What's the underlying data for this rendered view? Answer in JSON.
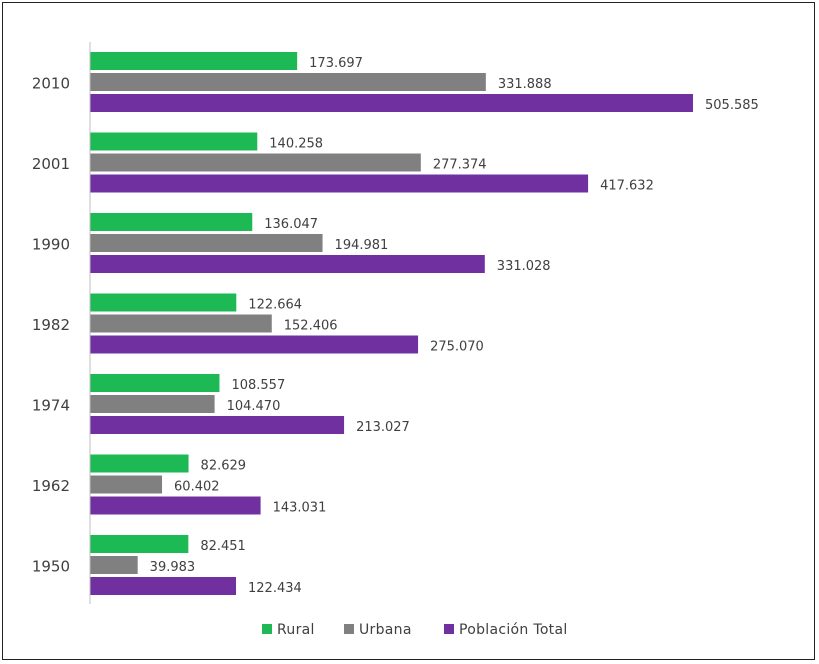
{
  "chart_data": {
    "type": "bar",
    "orientation": "horizontal",
    "title": "",
    "xlabel": "",
    "ylabel": "",
    "categories": [
      "2010",
      "2001",
      "1990",
      "1982",
      "1974",
      "1962",
      "1950"
    ],
    "series": [
      {
        "name": "Rural",
        "color": "#1db954",
        "values": [
          173697,
          140258,
          136047,
          122664,
          108557,
          82629,
          82451
        ],
        "labels": [
          "173.697",
          "140.258",
          "136.047",
          "122.664",
          "108.557",
          "82.629",
          "82.451"
        ]
      },
      {
        "name": "Urbana",
        "color": "#808080",
        "values": [
          331888,
          277374,
          194981,
          152406,
          104470,
          60402,
          39983
        ],
        "labels": [
          "331.888",
          "277.374",
          "194.981",
          "152.406",
          "104.470",
          "60.402",
          "39.983"
        ]
      },
      {
        "name": "Población Total",
        "color": "#7030a0",
        "values": [
          505585,
          417632,
          331028,
          275070,
          213027,
          143031,
          122434
        ],
        "labels": [
          "505.585",
          "417.632",
          "331.028",
          "275.070",
          "213.027",
          "143.031",
          "122.434"
        ]
      }
    ],
    "xlim": [
      0,
      600000
    ],
    "grid": false,
    "legend_position": "bottom"
  }
}
